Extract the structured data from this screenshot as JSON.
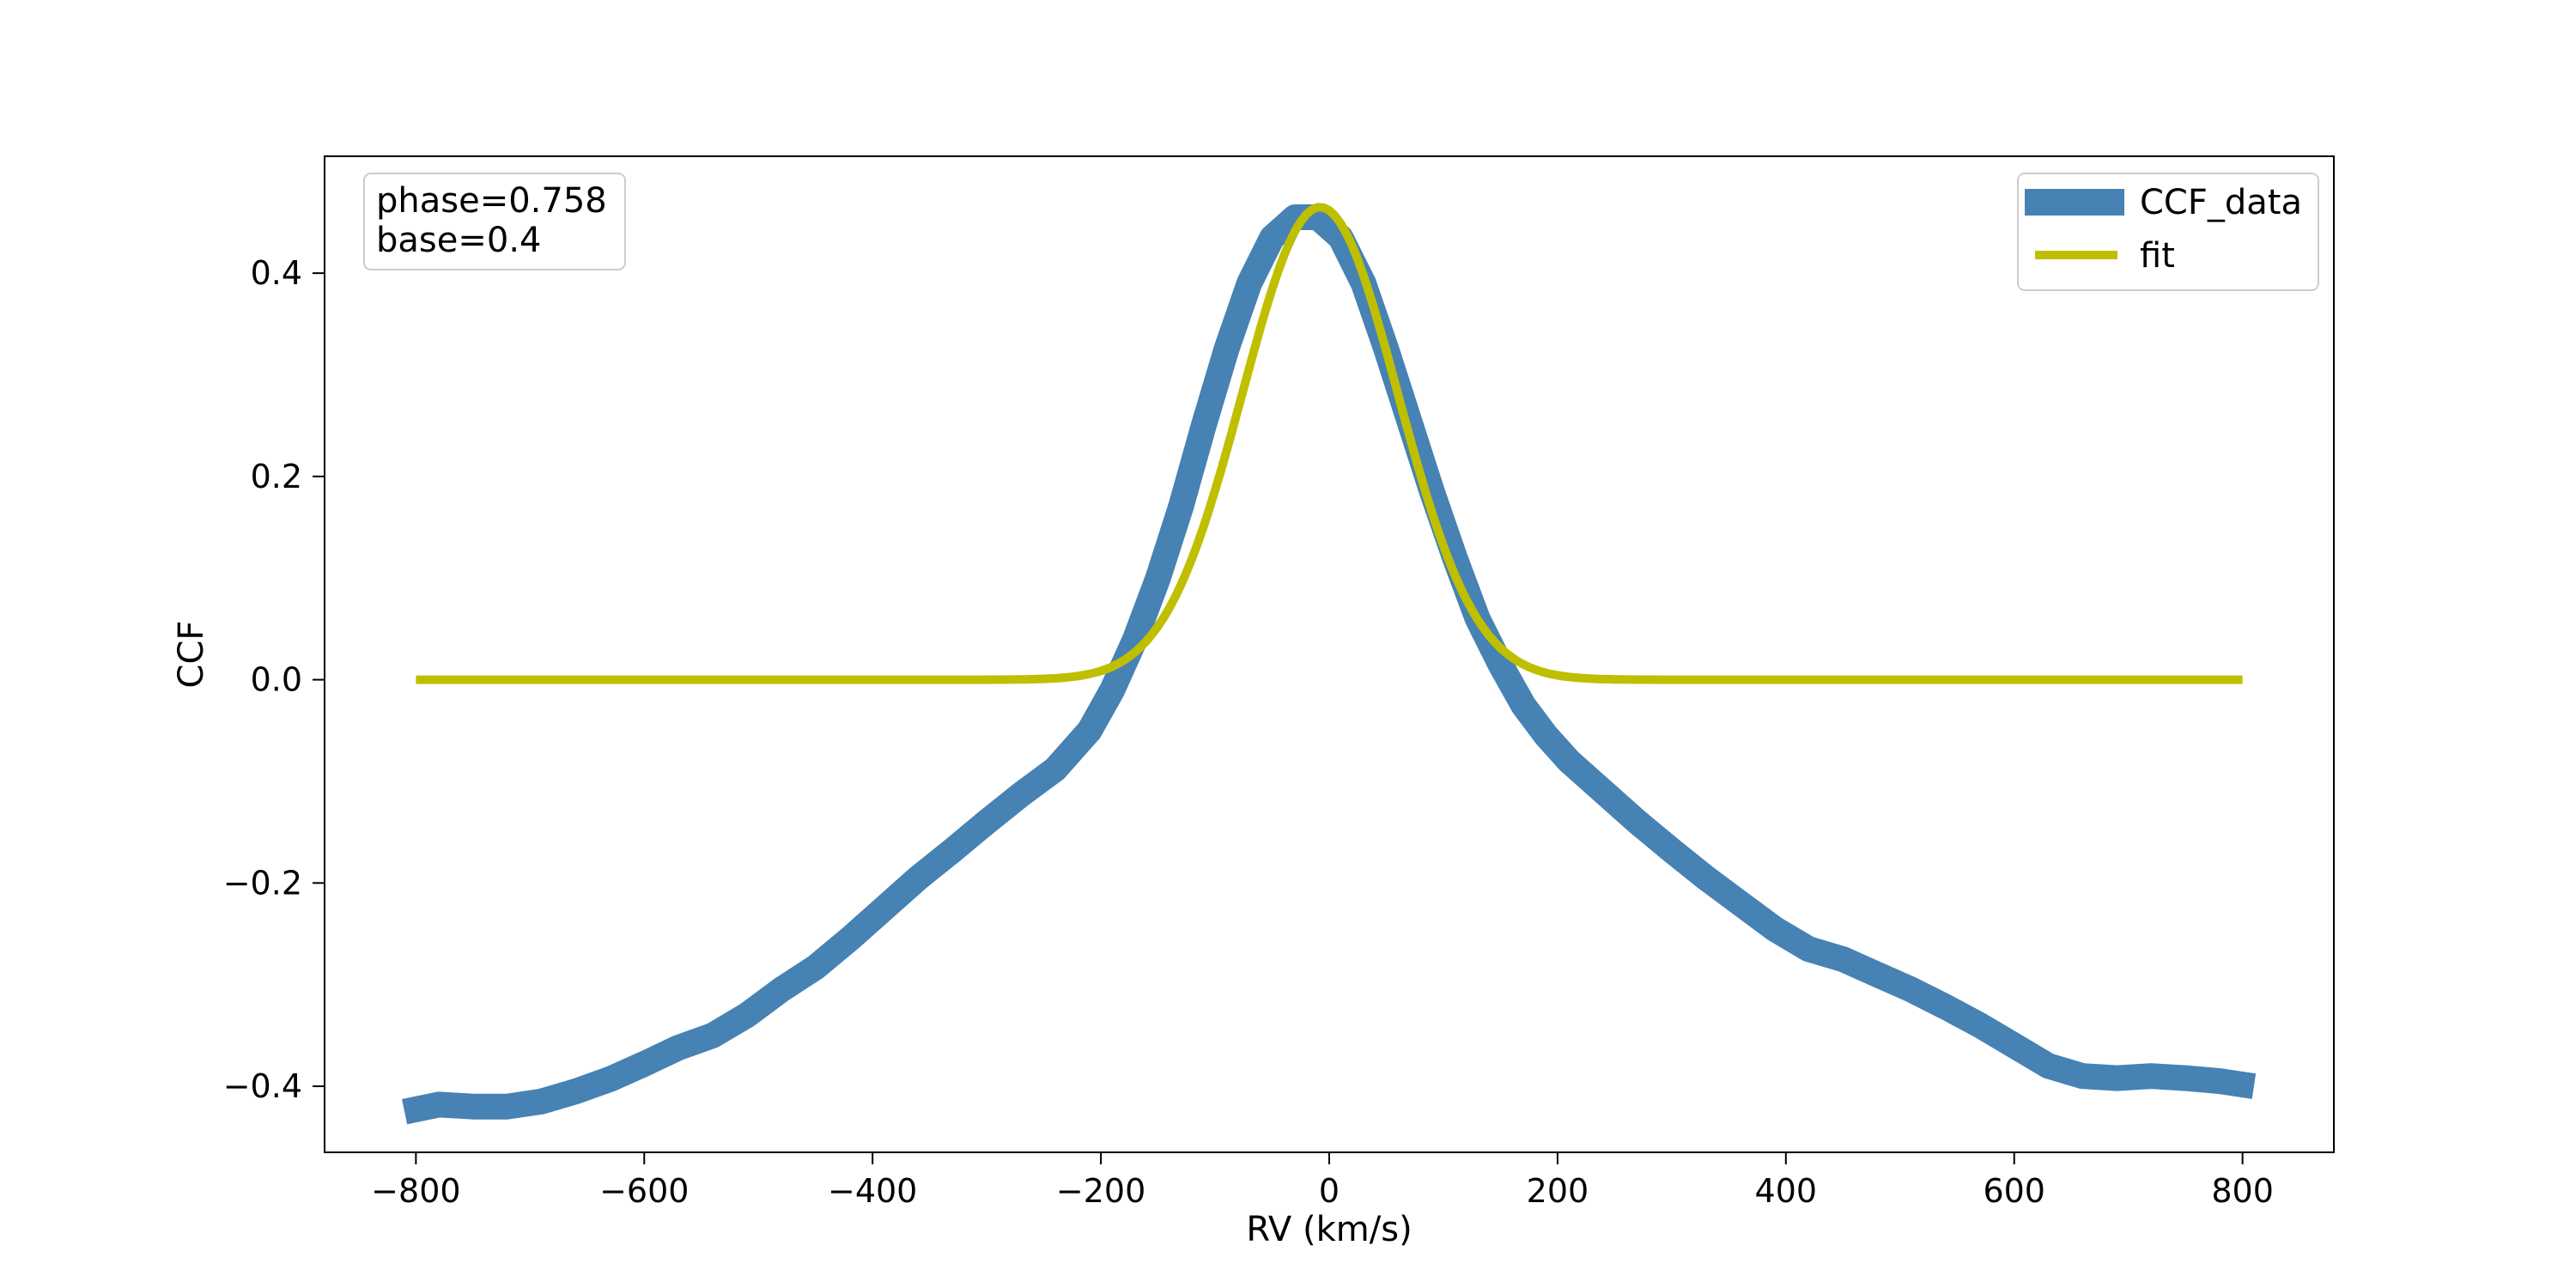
{
  "chart_data": {
    "type": "line",
    "xlabel": "RV (km/s)",
    "ylabel": "CCF",
    "xlim": [
      -880,
      880
    ],
    "ylim": [
      -0.465,
      0.515
    ],
    "x_ticks": [
      -800,
      -600,
      -400,
      -200,
      0,
      200,
      400,
      600,
      800
    ],
    "x_tick_labels": [
      "−800",
      "−600",
      "−400",
      "−200",
      "0",
      "200",
      "400",
      "600",
      "800"
    ],
    "y_ticks": [
      -0.4,
      -0.2,
      0.0,
      0.2,
      0.4
    ],
    "y_tick_labels": [
      "−0.4",
      "−0.2",
      "0.0",
      "0.2",
      "0.4"
    ],
    "grid": false,
    "legend_placement": "top-right",
    "annotation": {
      "placement": "top-left",
      "lines": [
        "phase=0.758",
        "base=0.4"
      ]
    },
    "colors": {
      "CCF_data": "#4682b4",
      "fit": "#bfbf00"
    },
    "series": [
      {
        "name": "CCF_data",
        "style": "thick",
        "x": [
          -810,
          -780,
          -750,
          -720,
          -690,
          -660,
          -630,
          -600,
          -570,
          -540,
          -510,
          -480,
          -450,
          -420,
          -390,
          -360,
          -330,
          -300,
          -270,
          -240,
          -210,
          -190,
          -170,
          -150,
          -130,
          -110,
          -90,
          -70,
          -50,
          -30,
          -10,
          10,
          30,
          50,
          70,
          90,
          110,
          130,
          150,
          170,
          190,
          210,
          240,
          270,
          300,
          330,
          360,
          390,
          420,
          450,
          480,
          510,
          540,
          570,
          600,
          630,
          660,
          690,
          720,
          750,
          780,
          810
        ],
        "y": [
          -0.425,
          -0.418,
          -0.42,
          -0.42,
          -0.415,
          -0.405,
          -0.393,
          -0.378,
          -0.362,
          -0.35,
          -0.33,
          -0.305,
          -0.283,
          -0.255,
          -0.225,
          -0.195,
          -0.168,
          -0.14,
          -0.113,
          -0.088,
          -0.05,
          -0.01,
          0.04,
          0.1,
          0.17,
          0.25,
          0.325,
          0.39,
          0.435,
          0.455,
          0.455,
          0.435,
          0.39,
          0.325,
          0.255,
          0.185,
          0.12,
          0.06,
          0.015,
          -0.025,
          -0.055,
          -0.08,
          -0.11,
          -0.14,
          -0.168,
          -0.195,
          -0.22,
          -0.245,
          -0.265,
          -0.275,
          -0.29,
          -0.305,
          -0.322,
          -0.34,
          -0.36,
          -0.38,
          -0.39,
          -0.392,
          -0.39,
          -0.392,
          -0.395,
          -0.4
        ]
      },
      {
        "name": "fit",
        "style": "gaussian",
        "amplitude": 0.465,
        "center": -8,
        "sigma": 68,
        "x_range": [
          -800,
          800
        ]
      }
    ]
  }
}
